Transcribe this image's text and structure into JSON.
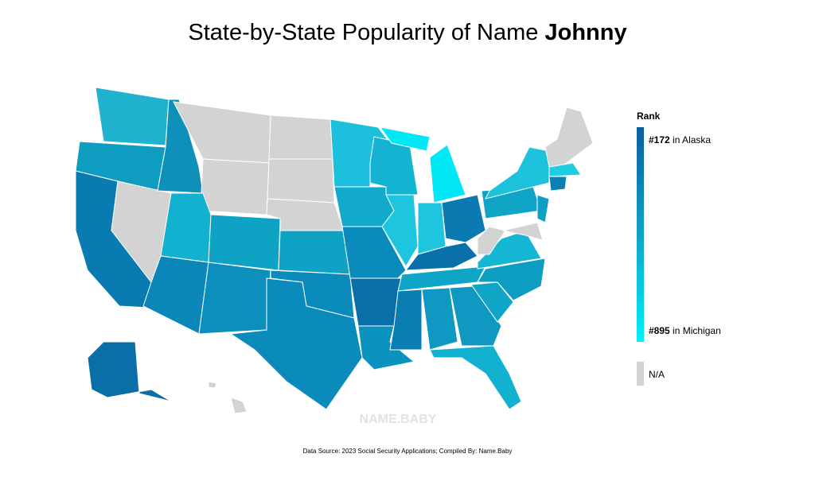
{
  "title": {
    "text": "State-by-State Popularity of Name",
    "name": "Johnny"
  },
  "legend": {
    "title": "Rank",
    "max": {
      "rank": "#172",
      "label": "in Alaska"
    },
    "min": {
      "rank": "#895",
      "label": "in Michigan"
    },
    "na": "N/A"
  },
  "watermark": "NAME.BABY",
  "source": "Data Source: 2023 Social Security Applications; Compiled By: Name.Baby"
}
